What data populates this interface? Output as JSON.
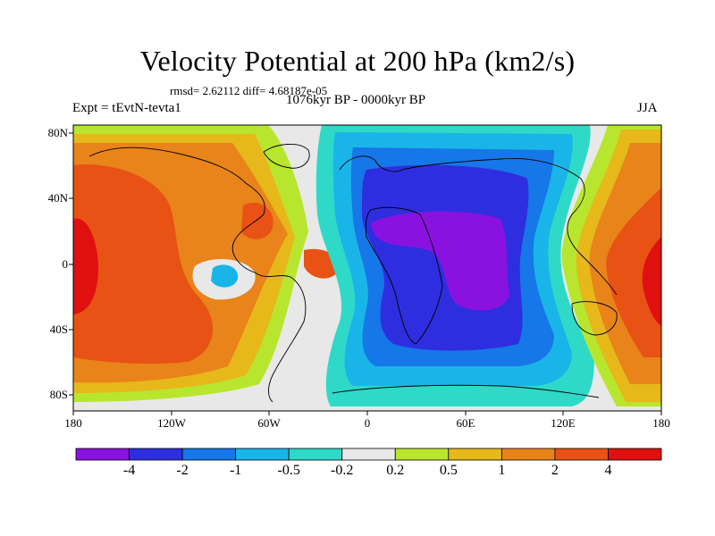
{
  "title": "Velocity Potential at 200 hPa (km2/s)",
  "stats": "rmsd= 2.62112 diff= 4.68187e-05",
  "period": "1076kyr BP - 0000kyr BP",
  "experiment": "Expt = tEvtN-tevta1",
  "season": "JJA",
  "latitude_ticks": [
    "80N",
    "40N",
    "0",
    "40S",
    "80S"
  ],
  "longitude_ticks": [
    "180",
    "120W",
    "60W",
    "0",
    "60E",
    "120E",
    "180"
  ],
  "colorbar": {
    "labels": [
      "-4",
      "-2",
      "-1",
      "-0.5",
      "-0.2",
      "0.2",
      "0.5",
      "1",
      "2",
      "4"
    ],
    "colors": [
      "#8a12e0",
      "#2e2ee0",
      "#1677e8",
      "#1ab5e8",
      "#2fd9c8",
      "#e8e8e8",
      "#b8e62e",
      "#e6b81a",
      "#e8841a",
      "#e85214",
      "#e01010"
    ]
  }
}
